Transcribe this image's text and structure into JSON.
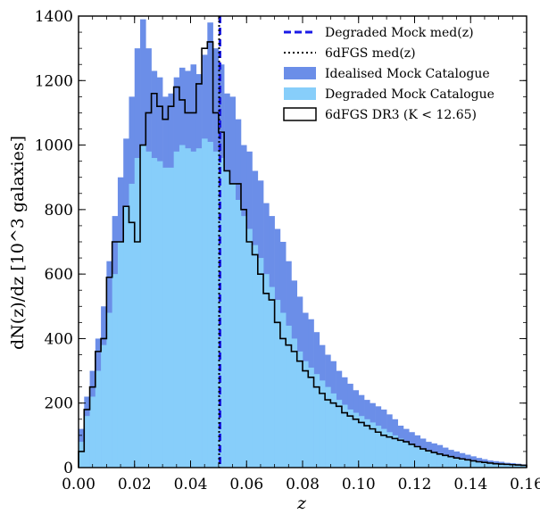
{
  "chart_data": {
    "type": "histogram",
    "xlabel": "z",
    "ylabel": "dN(z)/dz  [10^3 galaxies]",
    "xlim": [
      0.0,
      0.16
    ],
    "ylim": [
      0,
      1400
    ],
    "xticks": [
      "0.00",
      "0.02",
      "0.04",
      "0.06",
      "0.08",
      "0.10",
      "0.12",
      "0.14",
      "0.16"
    ],
    "yticks": [
      "0",
      "200",
      "400",
      "600",
      "800",
      "1000",
      "1200",
      "1400"
    ],
    "bin_width": 0.002,
    "bin_start": 0.0,
    "legend_position": "top-right",
    "series": [
      {
        "name": "Idealised Mock Catalogue",
        "style": "filled",
        "color": "#6b8ee8",
        "values": [
          120,
          220,
          300,
          400,
          500,
          640,
          780,
          900,
          1020,
          1150,
          1300,
          1390,
          1300,
          1230,
          1210,
          1150,
          1160,
          1210,
          1240,
          1230,
          1250,
          1220,
          1280,
          1380,
          1300,
          1250,
          1160,
          1150,
          1080,
          1000,
          980,
          920,
          890,
          820,
          780,
          740,
          700,
          640,
          580,
          530,
          480,
          460,
          420,
          380,
          350,
          330,
          300,
          280,
          260,
          240,
          225,
          210,
          200,
          190,
          180,
          165,
          150,
          130,
          120,
          110,
          100,
          90,
          80,
          75,
          70,
          62,
          55,
          50,
          45,
          40,
          35,
          30,
          26,
          22,
          20,
          18,
          15,
          14,
          12,
          10
        ]
      },
      {
        "name": "Degraded Mock Catalogue",
        "style": "filled",
        "color": "#87cefa",
        "values": [
          80,
          160,
          220,
          300,
          380,
          480,
          600,
          700,
          810,
          880,
          960,
          1000,
          980,
          960,
          950,
          930,
          930,
          980,
          1000,
          990,
          980,
          990,
          1020,
          1010,
          980,
          960,
          920,
          880,
          830,
          780,
          740,
          690,
          650,
          600,
          560,
          520,
          480,
          440,
          400,
          360,
          330,
          310,
          290,
          270,
          250,
          230,
          210,
          195,
          180,
          170,
          160,
          150,
          140,
          130,
          120,
          110,
          100,
          90,
          80,
          72,
          65,
          58,
          52,
          47,
          42,
          38,
          34,
          30,
          27,
          24,
          21,
          18,
          16,
          14,
          12,
          11,
          10,
          9,
          8,
          7
        ]
      },
      {
        "name": "6dFGS DR3 (K < 12.65)",
        "style": "step",
        "color": "#000000",
        "values": [
          50,
          180,
          250,
          360,
          400,
          590,
          700,
          700,
          810,
          760,
          700,
          1000,
          1100,
          1160,
          1120,
          1080,
          1120,
          1180,
          1140,
          1100,
          1100,
          1190,
          1300,
          1320,
          1100,
          1040,
          920,
          880,
          880,
          800,
          700,
          660,
          600,
          540,
          520,
          450,
          400,
          380,
          360,
          330,
          300,
          280,
          250,
          230,
          210,
          200,
          190,
          170,
          160,
          150,
          140,
          130,
          120,
          110,
          100,
          95,
          90,
          85,
          80,
          72,
          65,
          58,
          52,
          47,
          42,
          38,
          34,
          30,
          27,
          24,
          21,
          18,
          16,
          14,
          12,
          11,
          10,
          9,
          8,
          7
        ]
      }
    ],
    "reference_lines": [
      {
        "name": "Degraded Mock med(z)",
        "x": 0.0505,
        "style": "dashed",
        "color": "#1a1ae6"
      },
      {
        "name": "6dFGS med(z)",
        "x": 0.0502,
        "style": "dotted",
        "color": "#000000"
      }
    ]
  },
  "legend": [
    {
      "kind": "dashed-line",
      "label": "Degraded Mock med(z)",
      "color": "#1a1ae6"
    },
    {
      "kind": "dotted-line",
      "label": "6dFGS med(z)",
      "color": "#000000"
    },
    {
      "kind": "swatch",
      "label": "Idealised Mock Catalogue",
      "color": "#6b8ee8"
    },
    {
      "kind": "swatch",
      "label": "Degraded Mock Catalogue",
      "color": "#87cefa"
    },
    {
      "kind": "outline",
      "label": "6dFGS DR3 (K < 12.65)",
      "color": "#000000"
    }
  ]
}
